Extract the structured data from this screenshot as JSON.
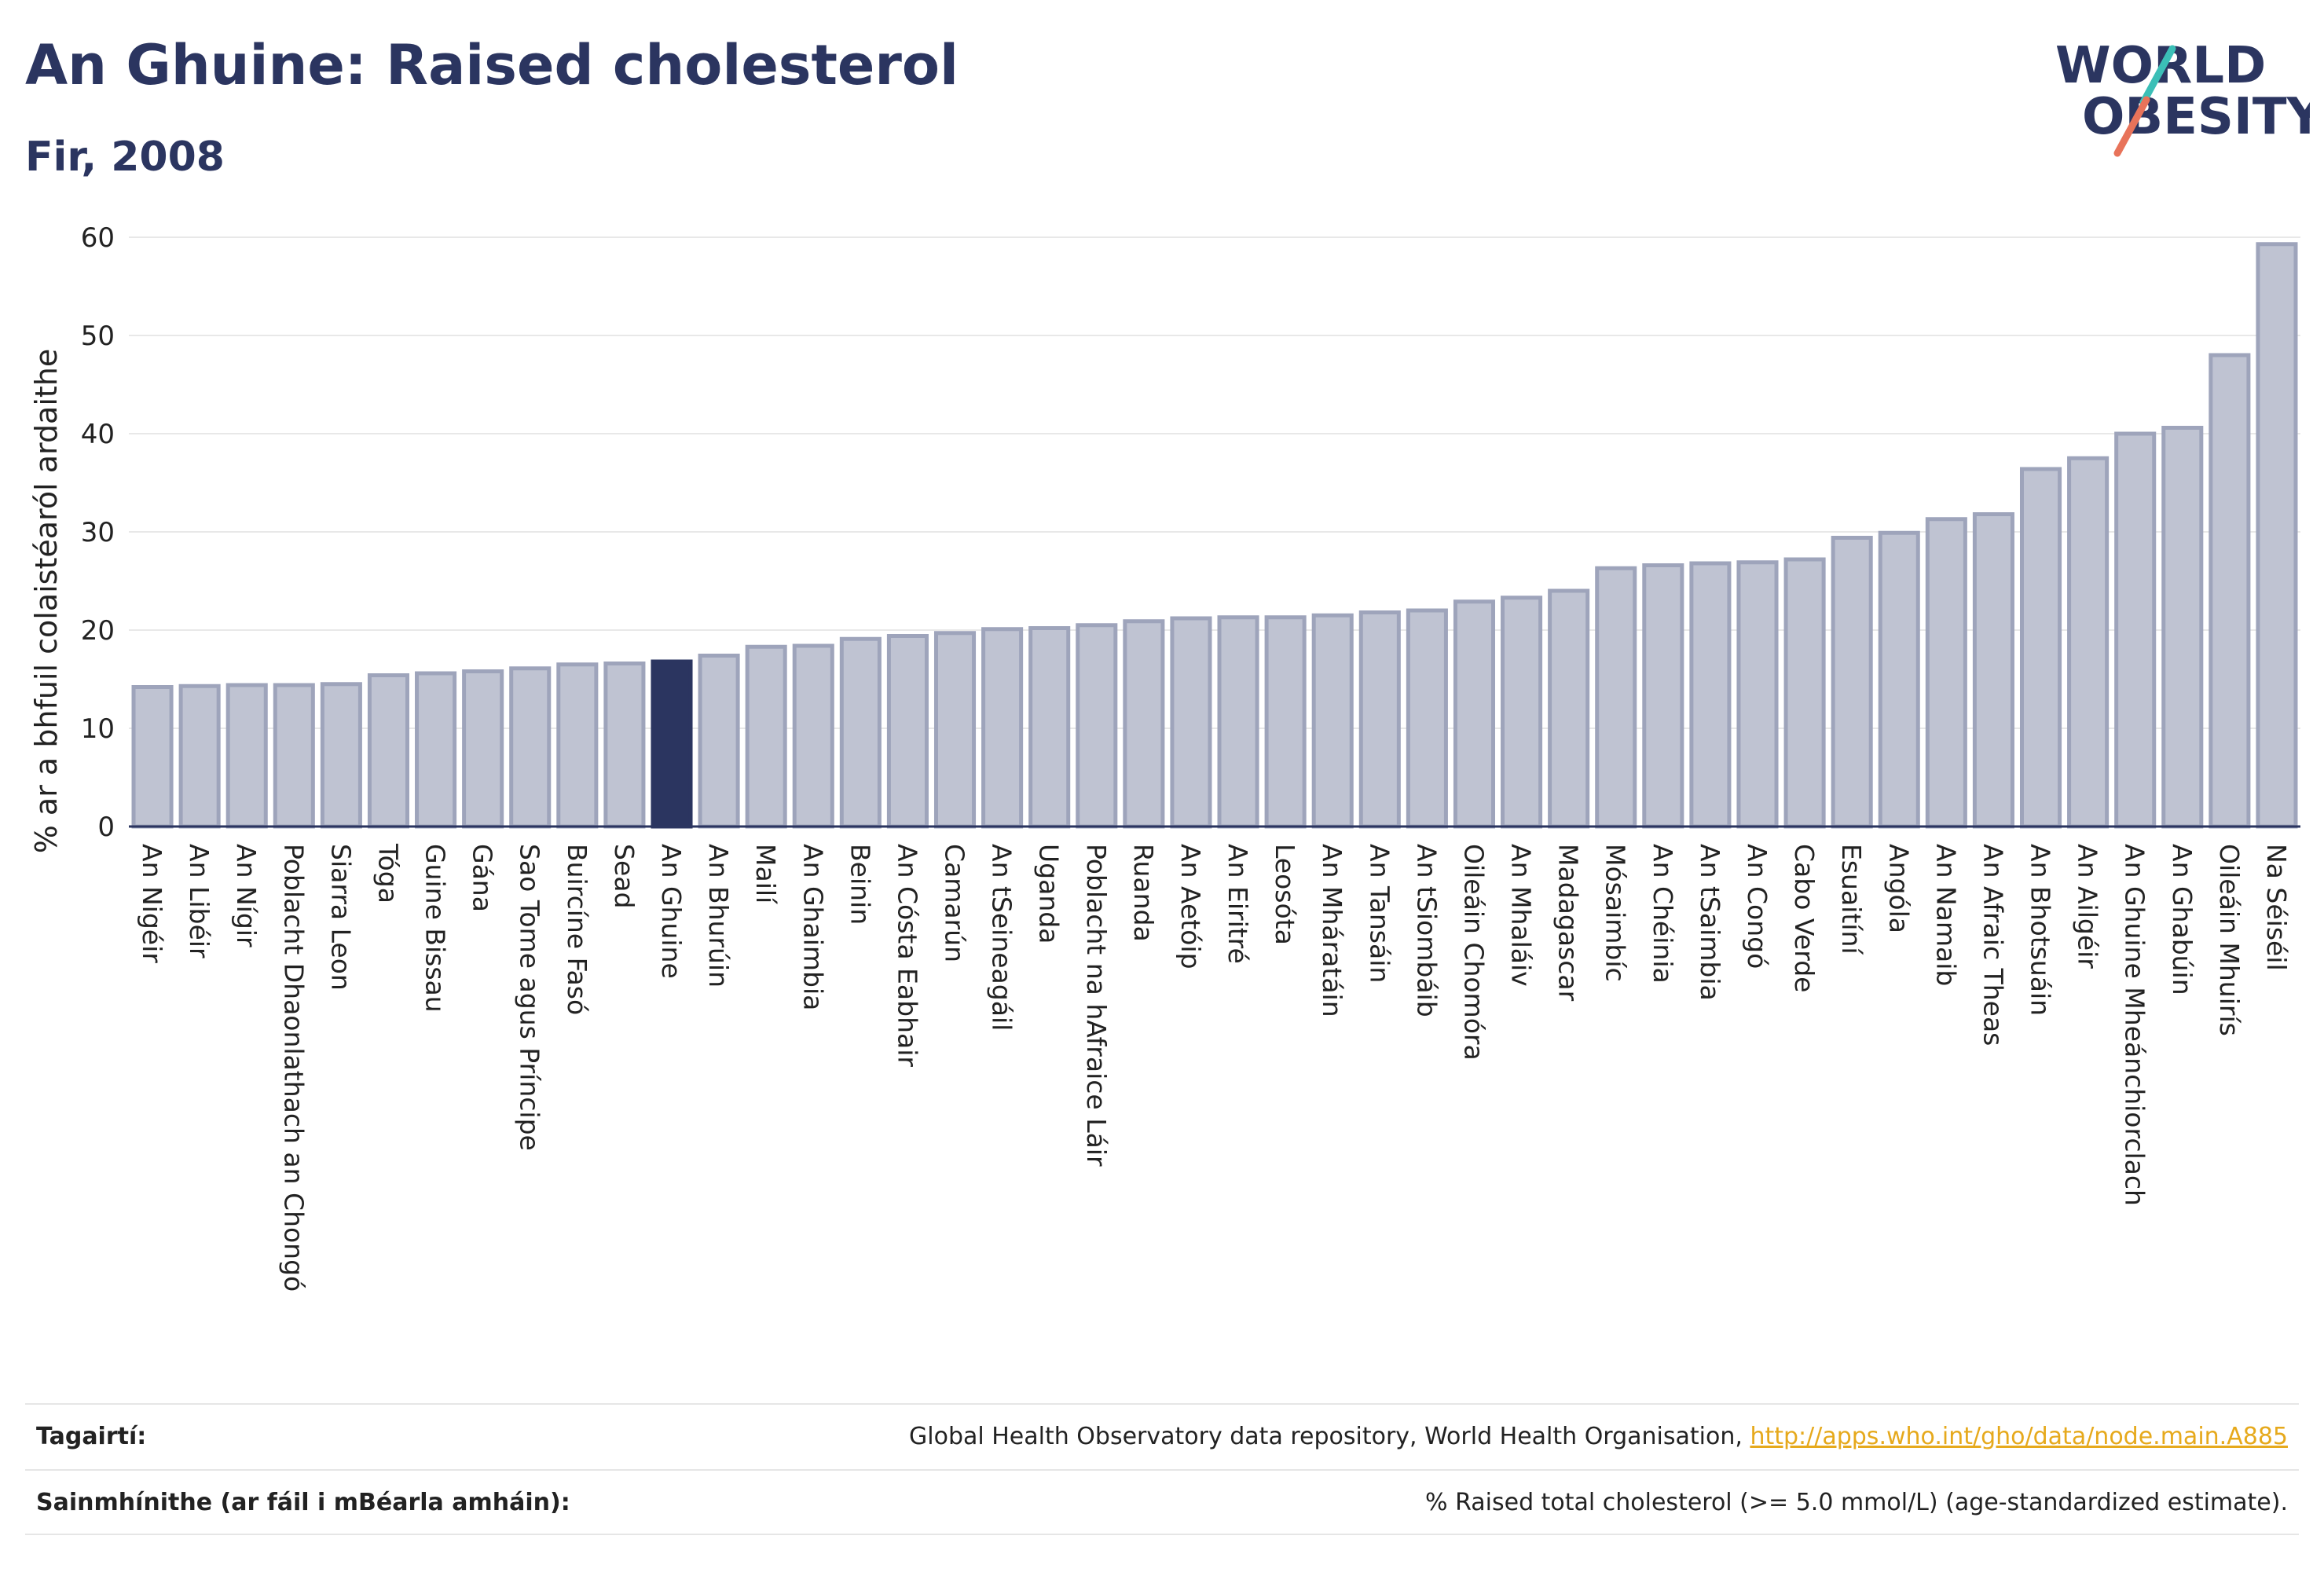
{
  "header": {
    "title": "An Ghuine: Raised cholesterol",
    "subtitle": "Fir, 2008"
  },
  "logo": {
    "line1": "WORLD",
    "line2": "OBESITY",
    "colors": {
      "text": "#2b3560",
      "slash_top": "#3bbfb7",
      "slash_bottom": "#e8735a"
    }
  },
  "chart_data": {
    "type": "bar",
    "title": "An Ghuine: Raised cholesterol",
    "subtitle": "Fir, 2008",
    "xlabel": "",
    "ylabel": "% ar a bhfuil colaistéaról ardaithe",
    "ylim": [
      0,
      60
    ],
    "yticks": [
      0,
      10,
      20,
      30,
      40,
      50,
      60
    ],
    "grid": true,
    "highlight": "An Ghuine",
    "colors": {
      "bar": "#bfc3d2",
      "bar_edge": "#9ea4bb",
      "highlight": "#2b3560",
      "grid": "#e8e8e8",
      "axis": "#2b3560"
    },
    "categories": [
      "An Nigéir",
      "An Libéir",
      "An Nígir",
      "Poblacht Dhaonlathach an Chongó",
      "Siarra Leon",
      "Tóga",
      "Guine Bissau",
      "Gána",
      "Sao Tome agus Príncipe",
      "Buircíne Fasó",
      "Sead",
      "An Ghuine",
      "An Bhurúin",
      "Mailí",
      "An Ghaimbia",
      "Beinin",
      "An Cósta Eabhair",
      "Camarún",
      "An tSeineagáil",
      "Uganda",
      "Poblacht na hAfraice Láir",
      "Ruanda",
      "An Aetóip",
      "An Eiritré",
      "Leosóta",
      "An Mháratáin",
      "An Tansáin",
      "An tSiombáib",
      "Oileáin Chomóra",
      "An Mhaláiv",
      "Madagascar",
      "Mósaimbíc",
      "An Chéinia",
      "An tSaimbia",
      "An Congó",
      "Cabo Verde",
      "Esuaitíní",
      "Angóla",
      "An Namaib",
      "An Afraic Theas",
      "An Bhotsuáin",
      "An Ailgéir",
      "An Ghuine Mheánchiorclach",
      "An Ghabúin",
      "Oileáin Mhuirís",
      "Na Séiséil"
    ],
    "values": [
      14.2,
      14.3,
      14.4,
      14.4,
      14.5,
      15.4,
      15.6,
      15.8,
      16.1,
      16.5,
      16.6,
      16.8,
      17.4,
      18.3,
      18.4,
      19.1,
      19.4,
      19.7,
      20.1,
      20.2,
      20.5,
      20.9,
      21.2,
      21.3,
      21.3,
      21.5,
      21.8,
      22.0,
      22.9,
      23.3,
      24.0,
      26.3,
      26.6,
      26.8,
      26.9,
      27.2,
      29.4,
      29.9,
      31.3,
      31.8,
      36.4,
      37.5,
      40.0,
      40.6,
      48.0,
      59.3
    ]
  },
  "footer": {
    "references_label": "Tagairtí:",
    "references_text": "Global Health Observatory data repository, World Health Organisation, ",
    "references_link": "http://apps.who.int/gho/data/node.main.A885",
    "definitions_label": "Sainmhínithe (ar fáil i mBéarla amháin):",
    "definitions_text": "% Raised total cholesterol (>= 5.0 mmol/L) (age-standardized estimate)."
  }
}
